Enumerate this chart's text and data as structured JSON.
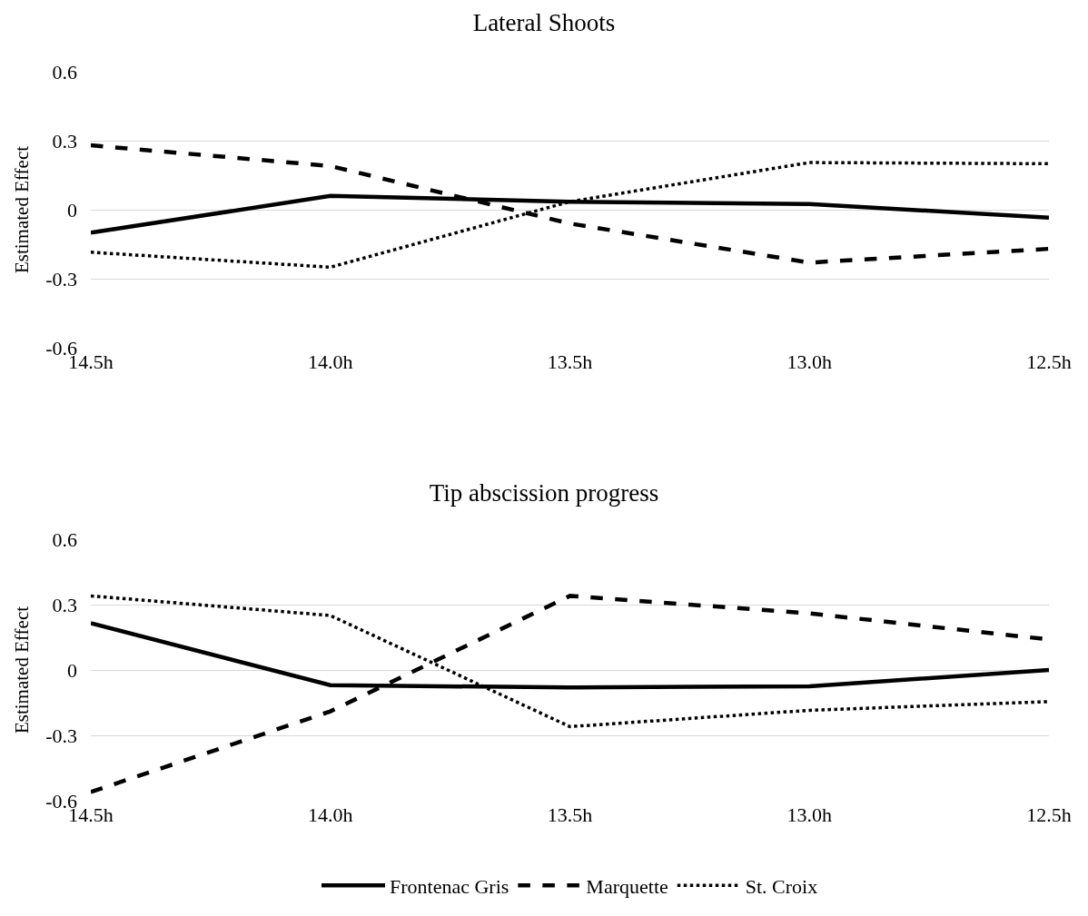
{
  "chart_data": [
    {
      "type": "line",
      "title": "Lateral Shoots",
      "ylabel": "Estimated Effect",
      "categories": [
        "14.5h",
        "14.0h",
        "13.5h",
        "13.0h",
        "12.5h"
      ],
      "ylim": [
        -0.6,
        0.6
      ],
      "yticks": [
        -0.6,
        -0.3,
        0,
        0.3,
        0.6
      ],
      "grid": "y",
      "legend": false,
      "marker": "none",
      "series": [
        {
          "color": "#000000",
          "line_style": "solid",
          "values": [
            -0.1,
            0.06,
            0.035,
            0.025,
            -0.035
          ]
        },
        {
          "color": "#000000",
          "line_style": "dashed",
          "values": [
            0.28,
            0.19,
            -0.06,
            -0.23,
            -0.17
          ]
        },
        {
          "color": "#000000",
          "line_style": "dotted",
          "values": [
            -0.185,
            -0.25,
            0.035,
            0.205,
            0.2
          ]
        }
      ]
    },
    {
      "type": "line",
      "title": "Tip abscission progress",
      "ylabel": "Estimated Effect",
      "categories": [
        "14.5h",
        "14.0h",
        "13.5h",
        "13.0h",
        "12.5h"
      ],
      "ylim": [
        -0.6,
        0.6
      ],
      "yticks": [
        -0.6,
        -0.3,
        0,
        0.3,
        0.6
      ],
      "grid": "y",
      "legend": "bottom",
      "marker": "none",
      "series": [
        {
          "name": "Frontenac Gris",
          "color": "#000000",
          "line_style": "solid",
          "values": [
            0.215,
            -0.07,
            -0.08,
            -0.075,
            0
          ]
        },
        {
          "name": "Marquette",
          "color": "#000000",
          "line_style": "dashed",
          "values": [
            -0.56,
            -0.19,
            0.34,
            0.26,
            0.14
          ]
        },
        {
          "name": "St. Croix",
          "color": "#000000",
          "line_style": "dotted",
          "values": [
            0.34,
            0.25,
            -0.26,
            -0.185,
            -0.145
          ]
        }
      ]
    }
  ]
}
